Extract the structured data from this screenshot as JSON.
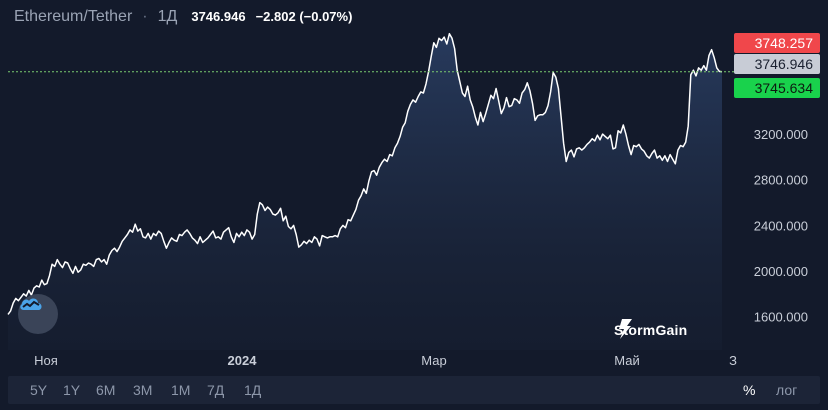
{
  "header": {
    "pair": "Ethereum/Tether",
    "separator": "·",
    "interval": "1Д",
    "last": "3746.946",
    "change": "−2.802 (−0.07%)"
  },
  "price_tags": {
    "ask": "3748.257",
    "last": "3746.946",
    "bid": "3745.634"
  },
  "colors": {
    "background": "#131a2b",
    "line": "#ffffff",
    "ask_tag": "#f0474b",
    "last_tag": "#c8ccd6",
    "bid_tag": "#19d24c",
    "current_price_line": "#7bc96f",
    "toolbar": "#1c2437"
  },
  "timeframes": [
    "5Y",
    "1Y",
    "6M",
    "3M",
    "1M",
    "7Д",
    "1Д"
  ],
  "scale_options": {
    "percent": "%",
    "log": "лог"
  },
  "brand": {
    "name": "StormGain",
    "logo_icon": "stormgain-logo-icon",
    "badge_icon": "cloud-chart-icon"
  },
  "chart_data": {
    "type": "area",
    "title": "",
    "x_tick_labels": [
      "Ноя",
      "2024",
      "Мар",
      "Май",
      "З"
    ],
    "y_tick_labels": [
      "1600.000",
      "2000.000",
      "2400.000",
      "2800.000",
      "3200.000"
    ],
    "y_ticks": [
      1600,
      2000,
      2400,
      2800,
      3200
    ],
    "ylim": [
      1220,
      4130
    ],
    "grid": false,
    "legend": "none",
    "current_price": 3746.946,
    "series": [
      {
        "values": [
          1620,
          1650,
          1720,
          1760,
          1740,
          1770,
          1800,
          1780,
          1830,
          1790,
          1850,
          1870,
          1860,
          1920,
          1880,
          1890,
          1960,
          2060,
          2040,
          2100,
          2060,
          2030,
          2080,
          2070,
          2020,
          1980,
          2040,
          1990,
          2010,
          2060,
          2050,
          2070,
          2060,
          2040,
          2100,
          2110,
          2080,
          2100,
          2060,
          2140,
          2180,
          2200,
          2170,
          2210,
          2260,
          2290,
          2320,
          2360,
          2340,
          2410,
          2350,
          2370,
          2300,
          2290,
          2330,
          2280,
          2330,
          2310,
          2350,
          2330,
          2260,
          2200,
          2250,
          2290,
          2270,
          2260,
          2320,
          2310,
          2340,
          2360,
          2330,
          2290,
          2270,
          2240,
          2300,
          2250,
          2270,
          2290,
          2320,
          2350,
          2290,
          2300,
          2280,
          2340,
          2360,
          2380,
          2300,
          2250,
          2330,
          2300,
          2340,
          2310,
          2360,
          2340,
          2280,
          2320,
          2500,
          2600,
          2580,
          2530,
          2560,
          2540,
          2500,
          2490,
          2510,
          2550,
          2440,
          2480,
          2390,
          2370,
          2400,
          2320,
          2210,
          2230,
          2260,
          2240,
          2270,
          2250,
          2300,
          2280,
          2220,
          2310,
          2300,
          2290,
          2300,
          2300,
          2310,
          2300,
          2370,
          2400,
          2380,
          2450,
          2440,
          2490,
          2540,
          2620,
          2660,
          2720,
          2680,
          2790,
          2870,
          2880,
          2840,
          2910,
          2950,
          2980,
          2960,
          3020,
          3010,
          3080,
          3120,
          3180,
          3260,
          3300,
          3400,
          3460,
          3500,
          3480,
          3530,
          3570,
          3560,
          3640,
          3750,
          3880,
          4000,
          3960,
          4040,
          4020,
          4050,
          3990,
          4080,
          4040,
          3950,
          3760,
          3660,
          3560,
          3530,
          3620,
          3500,
          3440,
          3350,
          3280,
          3390,
          3310,
          3380,
          3460,
          3540,
          3510,
          3600,
          3490,
          3380,
          3430,
          3520,
          3440,
          3450,
          3510,
          3500,
          3470,
          3560,
          3590,
          3650,
          3580,
          3470,
          3320,
          3360,
          3370,
          3370,
          3390,
          3450,
          3570,
          3740,
          3700,
          3600,
          3360,
          3120,
          2960,
          3040,
          3060,
          3000,
          3070,
          3080,
          3060,
          3080,
          3110,
          3130,
          3160,
          3140,
          3190,
          3150,
          3200,
          3180,
          3160,
          3190,
          3070,
          3080,
          3230,
          3210,
          3280,
          3200,
          3100,
          3020,
          3100,
          3090,
          3110,
          3070,
          3050,
          3010,
          2990,
          3030,
          3060,
          2990,
          3010,
          2970,
          3010,
          2960,
          3020,
          2980,
          2940,
          3060,
          3100,
          3090,
          3130,
          3270,
          3720,
          3760,
          3710,
          3780,
          3760,
          3800,
          3760,
          3890,
          3940,
          3870,
          3780,
          3750,
          3746.946
        ]
      }
    ]
  }
}
